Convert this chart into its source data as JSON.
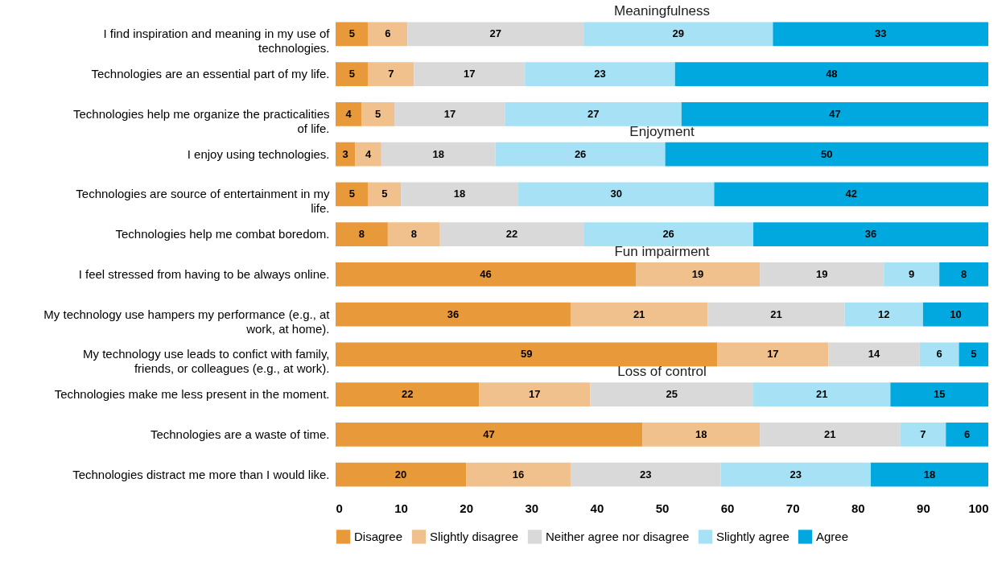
{
  "chart_data": {
    "type": "bar",
    "orientation": "horizontal",
    "stacked": true,
    "data_labels": false,
    "categories": [
      "I find inspiration and meaning in my use of technologies.",
      "Technologies are an essential part of my life.",
      "Technologies help me organize the practicalities of life.",
      "I enjoy using technologies.",
      "Technologies are source of entertainment in my life.",
      "Technologies help me combat boredom.",
      "I feel stressed from having to be always online.",
      "My technology use hampers my performance (e.g., at work, at home).",
      "My technology use leads to confict with family, friends, or colleagues (e.g., at work).",
      "Technologies make me less present in the moment.",
      "Technologies are a waste of time.",
      "Technologies distract me more than I would like."
    ],
    "series": [
      {
        "name": "Disagree",
        "color": "#e8993a",
        "values": [
          5,
          5,
          4,
          3,
          5,
          8,
          46,
          36,
          58.5,
          22,
          47,
          20
        ],
        "value_labels": [
          "5",
          "5",
          "4",
          "3",
          "5",
          "8",
          "46",
          "36",
          "59",
          "22",
          "47",
          "20"
        ]
      },
      {
        "name": "Slightly disagree",
        "color": "#f0c18c",
        "values": [
          6,
          7,
          5,
          4,
          5,
          8,
          19,
          21,
          17,
          17,
          18,
          16
        ],
        "value_labels": [
          "6",
          "7",
          "5",
          "4",
          "5",
          "8",
          "19",
          "21",
          "17",
          "17",
          "18",
          "16"
        ]
      },
      {
        "name": "Neither agree nor disagree",
        "color": "#d9d9d9",
        "values": [
          27,
          17,
          17,
          17.5,
          18,
          22,
          19,
          21,
          14,
          25,
          21.5,
          23
        ],
        "value_labels": [
          "27",
          "17",
          "17",
          "18",
          "18",
          "22",
          "19",
          "21",
          "14",
          "25",
          "21",
          "23"
        ]
      },
      {
        "name": "Slightly agree",
        "color": "#a6e1f5",
        "values": [
          29,
          23,
          27,
          26,
          30,
          26,
          8.5,
          12,
          6,
          21,
          7,
          23
        ],
        "value_labels": [
          "29",
          "23",
          "27",
          "26",
          "30",
          "26",
          "9",
          "12",
          "6",
          "21",
          "7",
          "23"
        ]
      },
      {
        "name": "Agree",
        "color": "#00a8e0",
        "values": [
          33,
          48,
          47,
          49.5,
          42,
          36,
          7.5,
          10,
          4.5,
          15,
          6.5,
          18
        ],
        "value_labels": [
          "33",
          "48",
          "47",
          "50",
          "42",
          "36",
          "8",
          "10",
          "5",
          "15",
          "6",
          "18"
        ]
      }
    ],
    "annotations": [
      "Meaningfulness",
      "Enjoyment",
      "Fun impairment",
      "Loss of control"
    ],
    "xlim": [
      0,
      100
    ],
    "xticks": [
      0,
      10,
      20,
      30,
      40,
      50,
      60,
      70,
      80,
      90,
      100
    ],
    "grid": false,
    "legend": "bottom"
  }
}
